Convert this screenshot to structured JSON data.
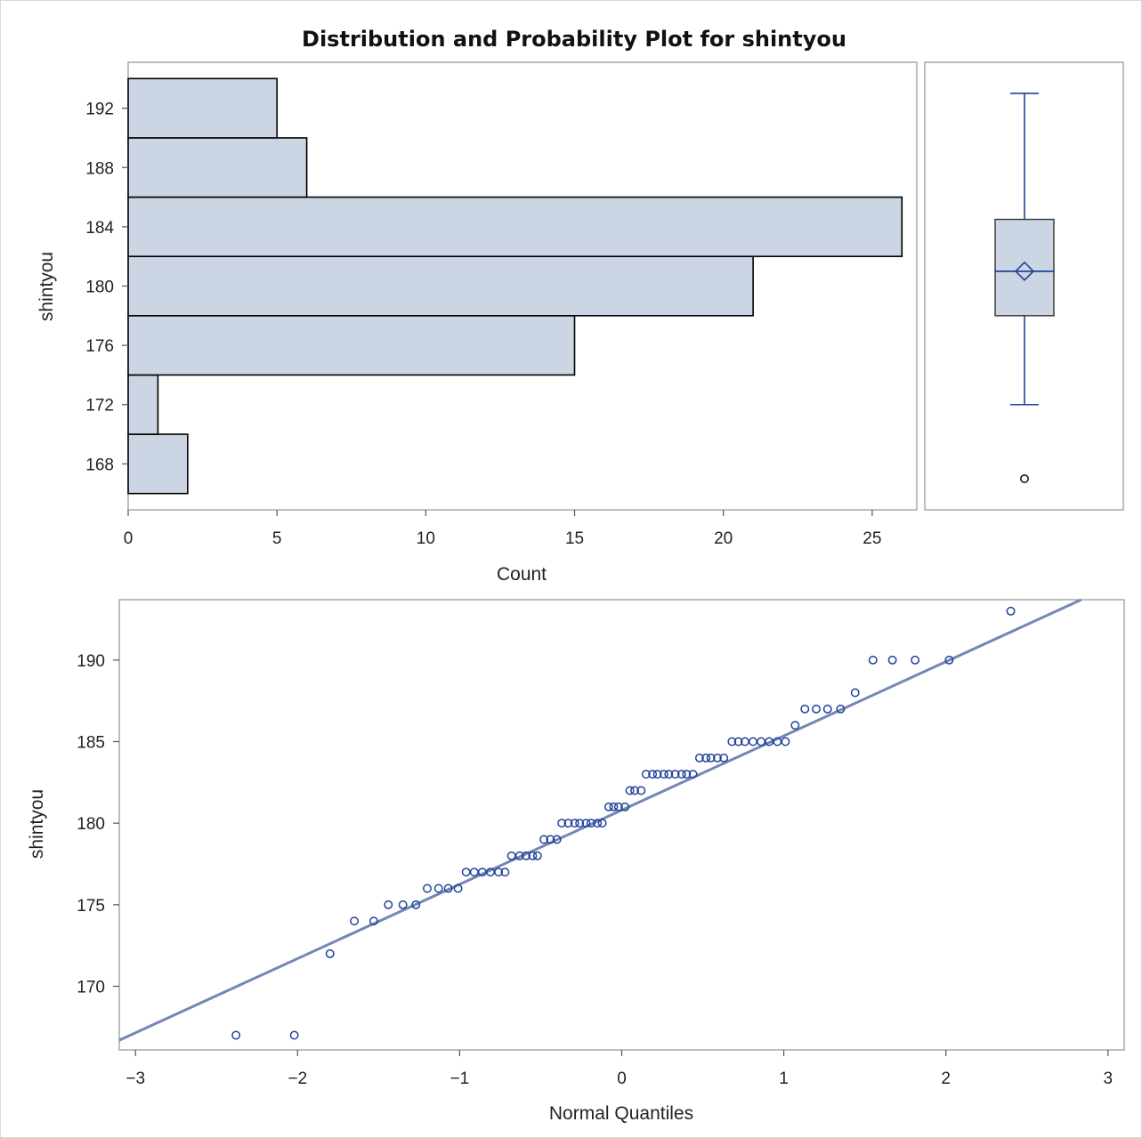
{
  "chart_data": [
    {
      "type": "bar",
      "orientation": "horizontal",
      "title": "Distribution and Probability Plot for shintyou",
      "xlabel": "Count",
      "ylabel": "shintyou",
      "bins": [
        {
          "lower": 166,
          "upper": 170,
          "count": 2
        },
        {
          "lower": 170,
          "upper": 174,
          "count": 1
        },
        {
          "lower": 174,
          "upper": 178,
          "count": 15
        },
        {
          "lower": 178,
          "upper": 182,
          "count": 21
        },
        {
          "lower": 182,
          "upper": 186,
          "count": 26
        },
        {
          "lower": 186,
          "upper": 190,
          "count": 6
        },
        {
          "lower": 190,
          "upper": 194,
          "count": 5
        }
      ],
      "xlim": [
        0,
        26.5
      ],
      "ylim": [
        164.9,
        195.1
      ],
      "xticks": [
        0,
        5,
        10,
        15,
        20,
        25
      ],
      "yticks": [
        168,
        172,
        176,
        180,
        184,
        188,
        192
      ],
      "colors": {
        "bar_fill": "#cbd5e3",
        "bar_stroke": "#000000"
      }
    },
    {
      "type": "box",
      "ylim": [
        164.9,
        195.1
      ],
      "min_whisker": 172,
      "q1": 178,
      "median": 181,
      "q3": 184.5,
      "mean": 181,
      "max_whisker": 193,
      "outliers": [
        167
      ],
      "colors": {
        "box_fill": "#cbd5e3",
        "line": "#21419a"
      }
    },
    {
      "type": "scatter",
      "subtype": "normal-probability-plot",
      "xlabel": "Normal Quantiles",
      "ylabel": "shintyou",
      "xlim": [
        -3.1,
        3.1
      ],
      "ylim": [
        166.1,
        193.7
      ],
      "xticks": [
        -3,
        -2,
        -1,
        0,
        1,
        2,
        3
      ],
      "yticks": [
        170,
        175,
        180,
        185,
        190
      ],
      "fit_line": {
        "slope": 4.55,
        "intercept": 180.8
      },
      "points": [
        [
          -2.38,
          167
        ],
        [
          -2.02,
          167
        ],
        [
          -1.8,
          172
        ],
        [
          -1.65,
          174
        ],
        [
          -1.53,
          174
        ],
        [
          -1.44,
          175
        ],
        [
          -1.35,
          175
        ],
        [
          -1.27,
          175
        ],
        [
          -1.2,
          176
        ],
        [
          -1.13,
          176
        ],
        [
          -1.07,
          176
        ],
        [
          -1.01,
          176
        ],
        [
          -0.96,
          177
        ],
        [
          -0.91,
          177
        ],
        [
          -0.86,
          177
        ],
        [
          -0.81,
          177
        ],
        [
          -0.76,
          177
        ],
        [
          -0.72,
          177
        ],
        [
          -0.68,
          178
        ],
        [
          -0.63,
          178
        ],
        [
          -0.59,
          178
        ],
        [
          -0.55,
          178
        ],
        [
          -0.52,
          178
        ],
        [
          -0.48,
          179
        ],
        [
          -0.44,
          179
        ],
        [
          -0.4,
          179
        ],
        [
          -0.37,
          180
        ],
        [
          -0.33,
          180
        ],
        [
          -0.29,
          180
        ],
        [
          -0.26,
          180
        ],
        [
          -0.22,
          180
        ],
        [
          -0.19,
          180
        ],
        [
          -0.15,
          180
        ],
        [
          -0.12,
          180
        ],
        [
          -0.08,
          181
        ],
        [
          -0.05,
          181
        ],
        [
          -0.02,
          181
        ],
        [
          0.02,
          181
        ],
        [
          0.05,
          182
        ],
        [
          0.08,
          182
        ],
        [
          0.12,
          182
        ],
        [
          0.15,
          183
        ],
        [
          0.19,
          183
        ],
        [
          0.22,
          183
        ],
        [
          0.26,
          183
        ],
        [
          0.29,
          183
        ],
        [
          0.33,
          183
        ],
        [
          0.37,
          183
        ],
        [
          0.4,
          183
        ],
        [
          0.44,
          183
        ],
        [
          0.48,
          184
        ],
        [
          0.52,
          184
        ],
        [
          0.55,
          184
        ],
        [
          0.59,
          184
        ],
        [
          0.63,
          184
        ],
        [
          0.68,
          185
        ],
        [
          0.72,
          185
        ],
        [
          0.76,
          185
        ],
        [
          0.81,
          185
        ],
        [
          0.86,
          185
        ],
        [
          0.91,
          185
        ],
        [
          0.96,
          185
        ],
        [
          1.01,
          185
        ],
        [
          1.07,
          186
        ],
        [
          1.13,
          187
        ],
        [
          1.2,
          187
        ],
        [
          1.27,
          187
        ],
        [
          1.35,
          187
        ],
        [
          1.44,
          188
        ],
        [
          1.55,
          190
        ],
        [
          1.67,
          190
        ],
        [
          1.81,
          190
        ],
        [
          2.02,
          190
        ],
        [
          2.4,
          193
        ]
      ],
      "colors": {
        "marker": "#21419a",
        "line": "#7287b5"
      }
    }
  ]
}
